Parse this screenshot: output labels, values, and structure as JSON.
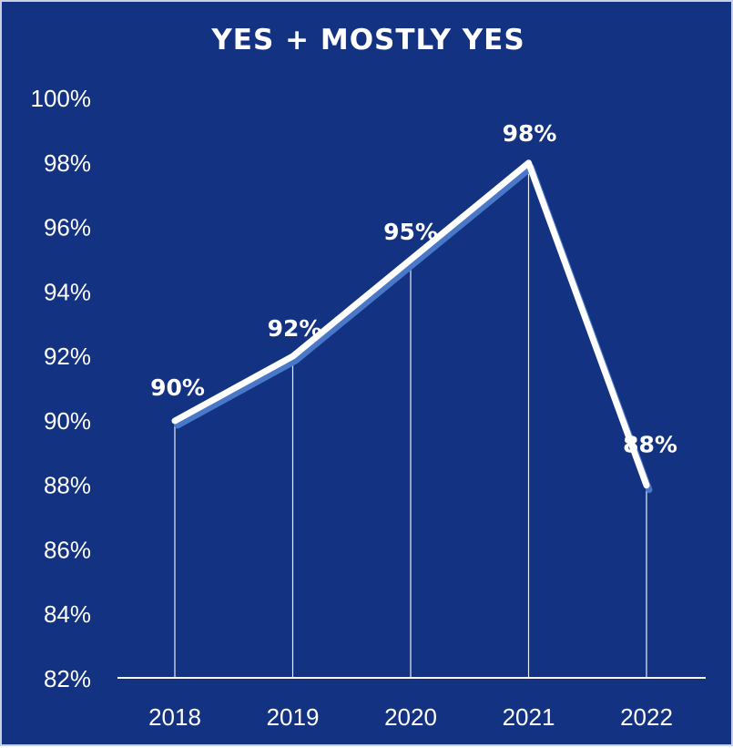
{
  "chart_data": {
    "type": "line",
    "title": "YES + MOSTLY YES",
    "xlabel": "",
    "ylabel": "",
    "categories": [
      "2018",
      "2019",
      "2020",
      "2021",
      "2022"
    ],
    "values": [
      90,
      92,
      95,
      98,
      88
    ],
    "data_labels": [
      "90%",
      "92%",
      "95%",
      "98%",
      "88%"
    ],
    "yticks": [
      82,
      84,
      86,
      88,
      90,
      92,
      94,
      96,
      98,
      100
    ],
    "ytick_labels": [
      "82%",
      "84%",
      "86%",
      "88%",
      "90%",
      "92%",
      "94%",
      "96%",
      "98%",
      "100%"
    ],
    "ylim": [
      82,
      100
    ],
    "grid": false,
    "drop_lines": true,
    "legend": "none",
    "colors": {
      "background": "#133282",
      "line": "#ffffff",
      "line_shadow": "#4a78c8",
      "text": "#ffffff"
    }
  }
}
